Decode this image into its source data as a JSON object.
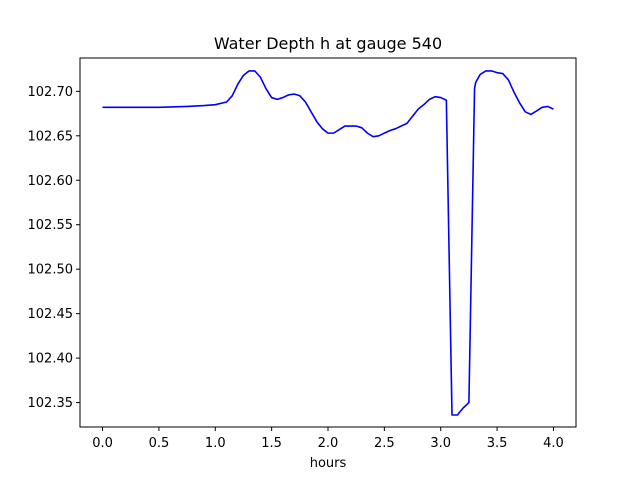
{
  "chart_data": {
    "type": "line",
    "title": "Water Depth h at gauge 540",
    "xlabel": "hours",
    "ylabel": "",
    "xlim": [
      -0.2,
      4.2
    ],
    "ylim": [
      102.3225,
      102.7375
    ],
    "grid": false,
    "xticks": [
      0.0,
      0.5,
      1.0,
      1.5,
      2.0,
      2.5,
      3.0,
      3.5,
      4.0
    ],
    "xtick_labels": [
      "0.0",
      "0.5",
      "1.0",
      "1.5",
      "2.0",
      "2.5",
      "3.0",
      "3.5",
      "4.0"
    ],
    "yticks": [
      102.35,
      102.4,
      102.45,
      102.5,
      102.55,
      102.6,
      102.65,
      102.7
    ],
    "ytick_labels": [
      "102.35",
      "102.40",
      "102.45",
      "102.50",
      "102.55",
      "102.60",
      "102.65",
      "102.70"
    ],
    "series": [
      {
        "color": "#0000ff",
        "x": [
          0.0,
          0.25,
          0.5,
          0.75,
          0.9,
          1.0,
          1.1,
          1.15,
          1.2,
          1.25,
          1.3,
          1.35,
          1.4,
          1.45,
          1.5,
          1.55,
          1.6,
          1.65,
          1.7,
          1.75,
          1.8,
          1.85,
          1.9,
          1.95,
          2.0,
          2.05,
          2.1,
          2.15,
          2.2,
          2.25,
          2.3,
          2.35,
          2.4,
          2.45,
          2.5,
          2.55,
          2.6,
          2.65,
          2.7,
          2.75,
          2.8,
          2.85,
          2.9,
          2.95,
          3.0,
          3.05,
          3.1,
          3.15,
          3.16,
          3.2,
          3.25,
          3.3,
          3.31,
          3.35,
          3.4,
          3.45,
          3.5,
          3.55,
          3.6,
          3.65,
          3.7,
          3.75,
          3.8,
          3.85,
          3.9,
          3.95,
          4.0
        ],
        "y": [
          102.682,
          102.682,
          102.682,
          102.683,
          102.684,
          102.685,
          102.688,
          102.695,
          102.708,
          102.718,
          102.723,
          102.723,
          102.716,
          102.703,
          102.693,
          102.691,
          102.693,
          102.696,
          102.697,
          102.695,
          102.688,
          102.677,
          102.666,
          102.658,
          102.653,
          102.653,
          102.657,
          102.661,
          102.661,
          102.661,
          102.659,
          102.653,
          102.649,
          102.65,
          102.653,
          102.656,
          102.658,
          102.661,
          102.664,
          102.672,
          102.68,
          102.685,
          102.691,
          102.694,
          102.693,
          102.69,
          102.336,
          102.336,
          102.338,
          102.344,
          102.35,
          102.703,
          102.71,
          102.719,
          102.723,
          102.723,
          102.721,
          102.72,
          102.713,
          102.699,
          102.687,
          102.677,
          102.674,
          102.678,
          102.682,
          102.683,
          102.68
        ]
      }
    ]
  }
}
